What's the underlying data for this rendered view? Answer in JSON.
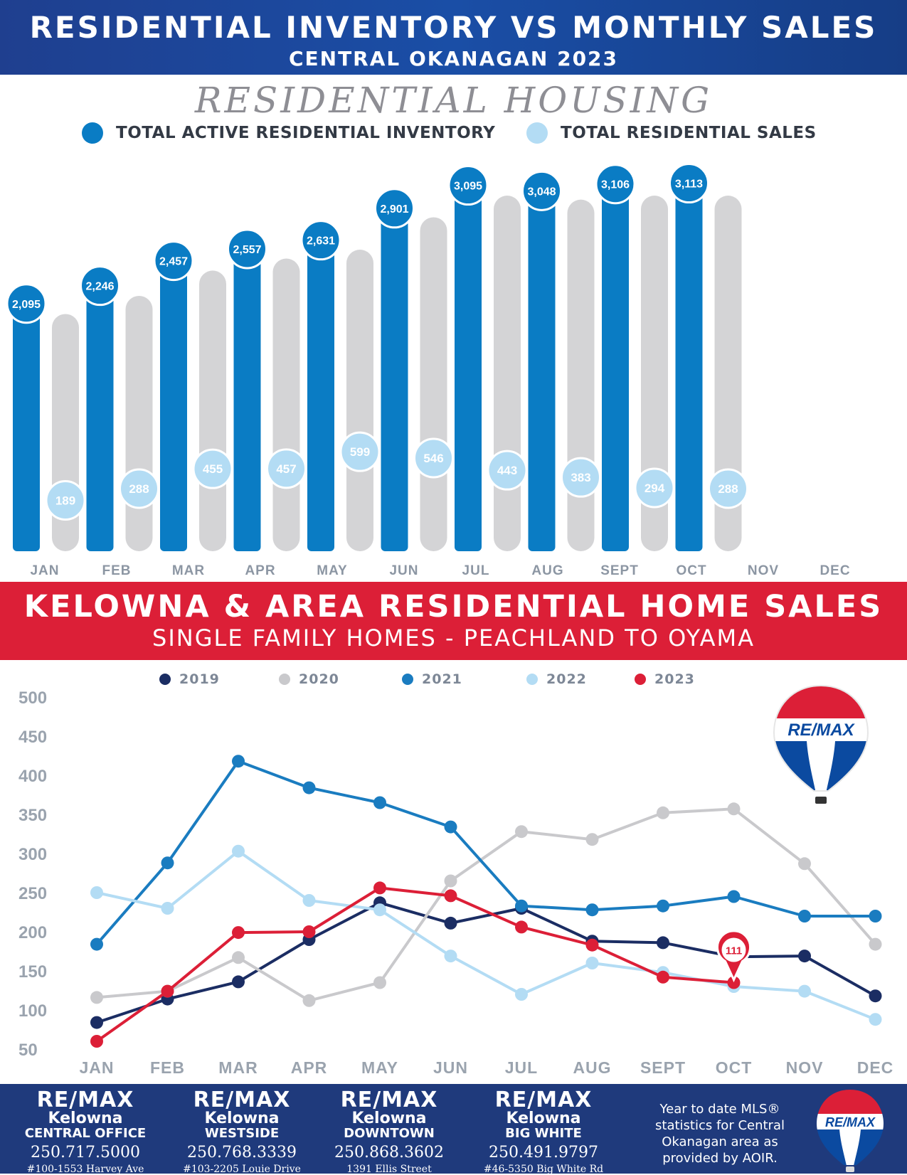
{
  "header": {
    "title": "RESIDENTIAL INVENTORY VS MONTHLY SALES",
    "subtitle": "CENTRAL OKANAGAN 2023"
  },
  "section1": {
    "script_title": "RESIDENTIAL HOUSING",
    "legend": [
      {
        "label": "TOTAL ACTIVE RESIDENTIAL INVENTORY",
        "color": "#0a7cc4"
      },
      {
        "label": "TOTAL RESIDENTIAL SALES",
        "color": "#b3dcf4"
      }
    ]
  },
  "section2": {
    "title": "KELOWNA & AREA RESIDENTIAL HOME SALES",
    "subtitle": "SINGLE FAMILY HOMES - PEACHLAND TO OYAMA"
  },
  "chart_data": [
    {
      "type": "bar",
      "categories": [
        "JAN",
        "FEB",
        "MAR",
        "APR",
        "MAY",
        "JUN",
        "JUL",
        "AUG",
        "SEPT",
        "OCT",
        "NOV",
        "DEC"
      ],
      "series": [
        {
          "name": "TOTAL ACTIVE RESIDENTIAL INVENTORY",
          "color": "#0a7cc4",
          "values": [
            2095,
            2246,
            2457,
            2557,
            2631,
            2901,
            3095,
            3048,
            3106,
            3113,
            null,
            null
          ]
        },
        {
          "name": "TOTAL RESIDENTIAL SALES",
          "color": "#b3dcf4",
          "values": [
            189,
            288,
            455,
            457,
            599,
            546,
            443,
            383,
            294,
            288,
            null,
            null
          ]
        }
      ],
      "value_labels": {
        "inventory": [
          "2,095",
          "2,246",
          "2,457",
          "2,557",
          "2,631",
          "2,901",
          "3,095",
          "3,048",
          "3,106",
          "3,113"
        ],
        "sales": [
          "189",
          "288",
          "455",
          "457",
          "599",
          "546",
          "443",
          "383",
          "294",
          "288"
        ]
      }
    },
    {
      "type": "line",
      "categories": [
        "JAN",
        "FEB",
        "MAR",
        "APR",
        "MAY",
        "JUN",
        "JUL",
        "AUG",
        "SEPT",
        "OCT",
        "NOV",
        "DEC"
      ],
      "ylim": [
        50,
        500
      ],
      "yticks": [
        "500",
        "450",
        "400",
        "350",
        "300",
        "250",
        "200",
        "150",
        "100",
        "50"
      ],
      "series": [
        {
          "name": "2019",
          "color": "#1b2d63",
          "values": [
            84,
            114,
            136,
            190,
            237,
            211,
            230,
            188,
            186,
            168,
            169,
            118
          ]
        },
        {
          "name": "2020",
          "color": "#c9c9cc",
          "values": [
            116,
            124,
            167,
            112,
            135,
            265,
            328,
            318,
            352,
            357,
            287,
            184
          ]
        },
        {
          "name": "2021",
          "color": "#1a7cc0",
          "values": [
            184,
            288,
            418,
            384,
            365,
            334,
            233,
            228,
            233,
            245,
            220,
            220
          ]
        },
        {
          "name": "2022",
          "color": "#b3dcf4",
          "values": [
            250,
            230,
            303,
            240,
            228,
            169,
            120,
            160,
            148,
            130,
            124,
            88
          ]
        },
        {
          "name": "2023",
          "color": "#dc1f37",
          "values": [
            60,
            124,
            199,
            200,
            256,
            246,
            206,
            183,
            142,
            135,
            null,
            null
          ]
        }
      ],
      "annotation": {
        "label": "111",
        "color": "#dc1f37"
      }
    }
  ],
  "remax_logo_text": "RE/MAX",
  "footer": {
    "offices": [
      {
        "brand": "RE/MAX",
        "city": "Kelowna",
        "sub": "CENTRAL OFFICE",
        "phone": "250.717.5000",
        "address": "#100-1553 Harvey Ave"
      },
      {
        "brand": "RE/MAX",
        "city": "Kelowna",
        "sub": "WESTSIDE",
        "phone": "250.768.3339",
        "address": "#103-2205 Louie Drive"
      },
      {
        "brand": "RE/MAX",
        "city": "Kelowna",
        "sub": "DOWNTOWN",
        "phone": "250.868.3602",
        "address": "1391 Ellis Street"
      },
      {
        "brand": "RE/MAX",
        "city": "Kelowna",
        "sub": "BIG WHITE",
        "phone": "250.491.9797",
        "address": "#46-5350 Big White Rd"
      }
    ],
    "note": "Year to date MLS® statistics for Central Okanagan area as provided by AOIR."
  }
}
